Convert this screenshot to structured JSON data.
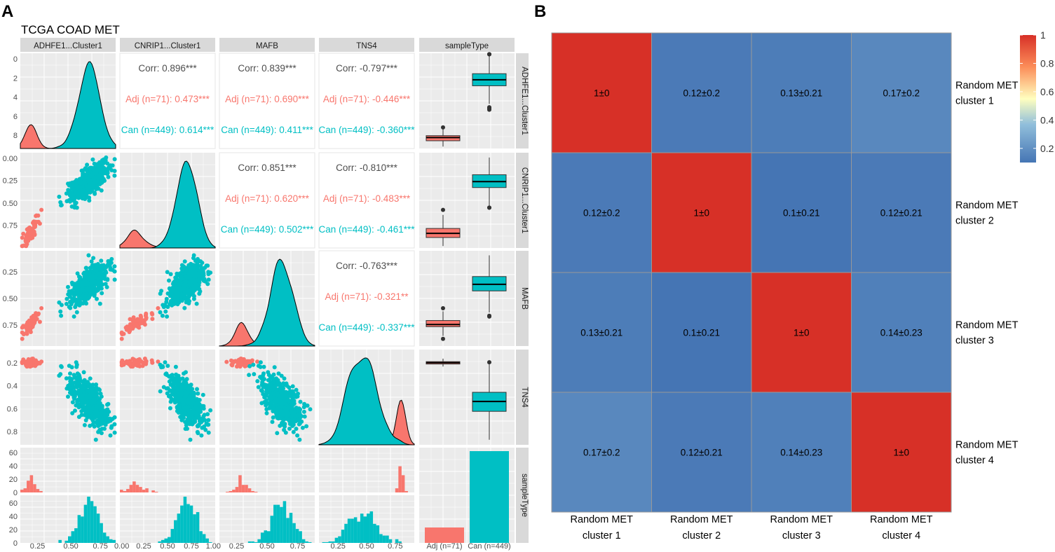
{
  "panel_labels": {
    "a": "A",
    "b": "B"
  },
  "colors": {
    "adj": "#f8766d",
    "can": "#00bfc4",
    "panel_bg": "#ebebeb",
    "strip_bg": "#d9d9d9",
    "text": "#4d4d4d",
    "heat_low": "#4575b4",
    "heat_mid": "#ffffbf",
    "heat_high": "#d73027"
  },
  "chart_data": [
    {
      "type": "scatter",
      "title": "TCGA COAD MET",
      "variables": [
        "ADHFE1...Cluster1",
        "CNRIP1...Cluster1",
        "MAFB",
        "TNS4",
        "sampleType"
      ],
      "groups": [
        "Adj",
        "Can"
      ],
      "group_labels": [
        "Adj (n=71)",
        "Can (n=449)"
      ],
      "group_sizes": [
        71,
        449
      ],
      "axis_ticks": {
        "ADHFE1...Cluster1": [
          "0",
          "2",
          "4",
          "6",
          "8"
        ],
        "CNRIP1...Cluster1": [
          "0.00",
          "0.25",
          "0.50",
          "0.75",
          "1.00"
        ],
        "MAFB": [
          "0.25",
          "0.50",
          "0.75"
        ],
        "TNS4": [
          "0.25",
          "0.50",
          "0.75"
        ],
        "sampleType": [
          "Adj (n=71)",
          "Can (n=449)"
        ],
        "tns4_y": [
          "0.2",
          "0.4",
          "0.6",
          "0.8"
        ],
        "count_top": [
          "0",
          "20",
          "40",
          "60"
        ],
        "count_bottom": [
          "0",
          "20",
          "40",
          "60"
        ]
      },
      "correlations": [
        {
          "row": "ADHFE1...Cluster1",
          "col": "CNRIP1...Cluster1",
          "corr": "Corr: 0.896***",
          "adj": "Adj (n=71): 0.473***",
          "can": "Can (n=449): 0.614***"
        },
        {
          "row": "ADHFE1...Cluster1",
          "col": "MAFB",
          "corr": "Corr: 0.839***",
          "adj": "Adj (n=71): 0.690***",
          "can": "Can (n=449): 0.411***"
        },
        {
          "row": "ADHFE1...Cluster1",
          "col": "TNS4",
          "corr": "Corr: -0.797***",
          "adj": "Adj (n=71): -0.446***",
          "can": "Can (n=449): -0.360***"
        },
        {
          "row": "CNRIP1...Cluster1",
          "col": "MAFB",
          "corr": "Corr: 0.851***",
          "adj": "Adj (n=71): 0.620***",
          "can": "Can (n=449): 0.502***"
        },
        {
          "row": "CNRIP1...Cluster1",
          "col": "TNS4",
          "corr": "Corr: -0.810***",
          "adj": "Adj (n=71): -0.483***",
          "can": "Can (n=449): -0.461***"
        },
        {
          "row": "MAFB",
          "col": "TNS4",
          "corr": "Corr: -0.763***",
          "adj": "Adj (n=71): -0.321**",
          "can": "Can (n=449): -0.337***"
        }
      ],
      "group_means": {
        "ADHFE1...Cluster1": {
          "adj": 0.12,
          "can": 0.72
        },
        "CNRIP1...Cluster1": {
          "adj": 0.18,
          "can": 0.7
        },
        "MAFB": {
          "adj": 0.25,
          "can": 0.65
        },
        "TNS4": {
          "adj": 0.86,
          "can": 0.45
        }
      },
      "sampleType_counts": {
        "Adj": 71,
        "Can": 449
      }
    },
    {
      "type": "heatmap",
      "title": "",
      "x_categories": [
        "Random MET cluster 1",
        "Random MET cluster 2",
        "Random MET cluster 3",
        "Random MET cluster 4"
      ],
      "y_categories": [
        "Random MET cluster 1",
        "Random MET cluster 2",
        "Random MET cluster 3",
        "Random MET cluster 4"
      ],
      "values": [
        [
          1,
          0.12,
          0.13,
          0.17
        ],
        [
          0.12,
          1,
          0.1,
          0.12
        ],
        [
          0.13,
          0.1,
          1,
          0.14
        ],
        [
          0.17,
          0.12,
          0.14,
          1
        ]
      ],
      "labels": [
        [
          "1±0",
          "0.12±0.2",
          "0.13±0.21",
          "0.17±0.2"
        ],
        [
          "0.12±0.2",
          "1±0",
          "0.1±0.21",
          "0.12±0.21"
        ],
        [
          "0.13±0.21",
          "0.1±0.21",
          "1±0",
          "0.14±0.23"
        ],
        [
          "0.17±0.2",
          "0.12±0.21",
          "0.14±0.23",
          "1±0"
        ]
      ],
      "x_labels_line1": [
        "Random MET",
        "Random MET",
        "Random MET",
        "Random MET"
      ],
      "x_labels_line2": [
        "cluster 1",
        "cluster 2",
        "cluster 3",
        "cluster 4"
      ],
      "y_labels_line1": [
        "Random MET",
        "Random MET",
        "Random MET",
        "Random MET"
      ],
      "y_labels_line2": [
        "cluster 1",
        "cluster 2",
        "cluster 3",
        "cluster 4"
      ],
      "color_range": [
        0.1,
        1
      ],
      "legend_ticks": [
        "1",
        "0.8",
        "0.6",
        "0.4",
        "0.2"
      ],
      "legend_values": [
        1,
        0.8,
        0.6,
        0.4,
        0.2
      ]
    }
  ]
}
